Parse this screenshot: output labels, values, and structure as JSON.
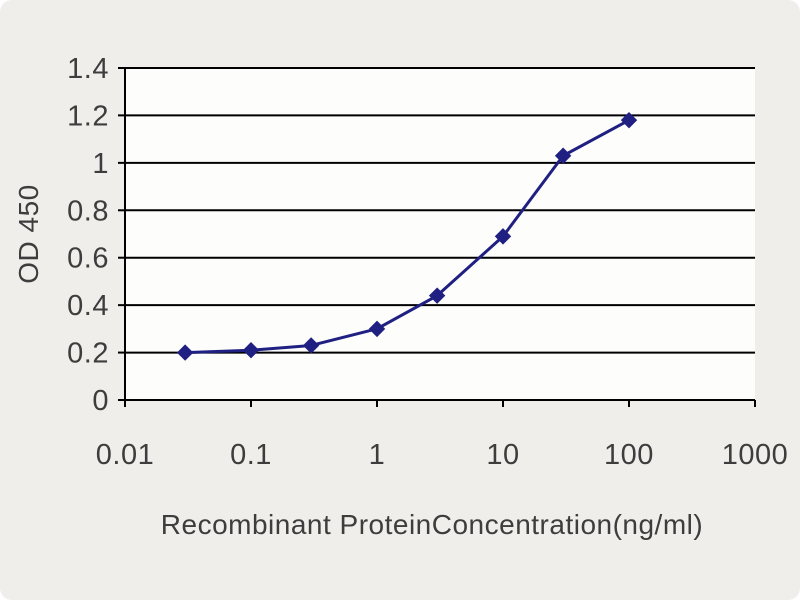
{
  "chart_data": {
    "type": "line",
    "xlabel": "Recombinant ProteinConcentration(ng/ml)",
    "ylabel": "OD 450",
    "x_scale": "log",
    "xlim": [
      0.01,
      1000
    ],
    "ylim": [
      0,
      1.4
    ],
    "x_ticks": [
      0.01,
      0.1,
      1,
      10,
      100,
      1000
    ],
    "x_tick_labels": [
      "0.01",
      "0.1",
      "1",
      "10",
      "100",
      "1000"
    ],
    "y_ticks": [
      0,
      0.2,
      0.4,
      0.6,
      0.8,
      1.0,
      1.2,
      1.4
    ],
    "y_tick_labels": [
      "0",
      "0.2",
      "0.4",
      "0.6",
      "0.8",
      "1",
      "1.2",
      "1.4"
    ],
    "grid": "horizontal",
    "legend": "none",
    "series": [
      {
        "marker": "diamond",
        "color": "#202082",
        "x": [
          0.03,
          0.1,
          0.3,
          1,
          3,
          10,
          30,
          100
        ],
        "y": [
          0.2,
          0.21,
          0.23,
          0.3,
          0.44,
          0.69,
          1.03,
          1.18
        ]
      }
    ]
  },
  "colors": {
    "background": "#f0eeeb",
    "plot_background": "#fdfdfc",
    "grid": "#000000",
    "text": "#3d3d3d",
    "line": "#202082"
  }
}
